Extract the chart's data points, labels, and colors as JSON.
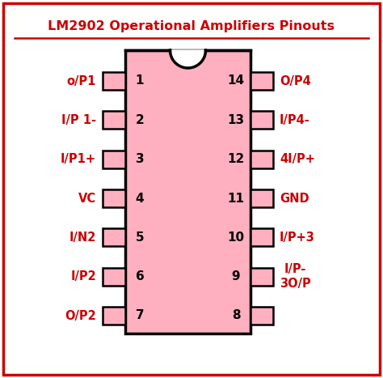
{
  "title": "LM2902 Operational Amplifiers Pinouts",
  "title_color": "#cc0000",
  "bg_color": "#ffffff",
  "border_color": "#cc0000",
  "ic_fill_color": "#ffb0c0",
  "ic_border_color": "#000000",
  "pin_text_color": "#cc0000",
  "pin_number_color": "#000000",
  "left_pins": [
    "o/P1",
    "I/P 1-",
    "I/P1+",
    "VC",
    "I/N2",
    "I/P2",
    "O/P2"
  ],
  "right_pins": [
    "O/P4",
    "I/P4-",
    "4I/P+",
    "GND",
    "I/P+3",
    "I/P-\n3O/P",
    ""
  ],
  "left_pin_numbers": [
    1,
    2,
    3,
    4,
    5,
    6,
    7
  ],
  "right_pin_numbers": [
    14,
    13,
    12,
    11,
    10,
    9,
    8
  ],
  "figsize": [
    4.74,
    4.67
  ],
  "dpi": 100
}
